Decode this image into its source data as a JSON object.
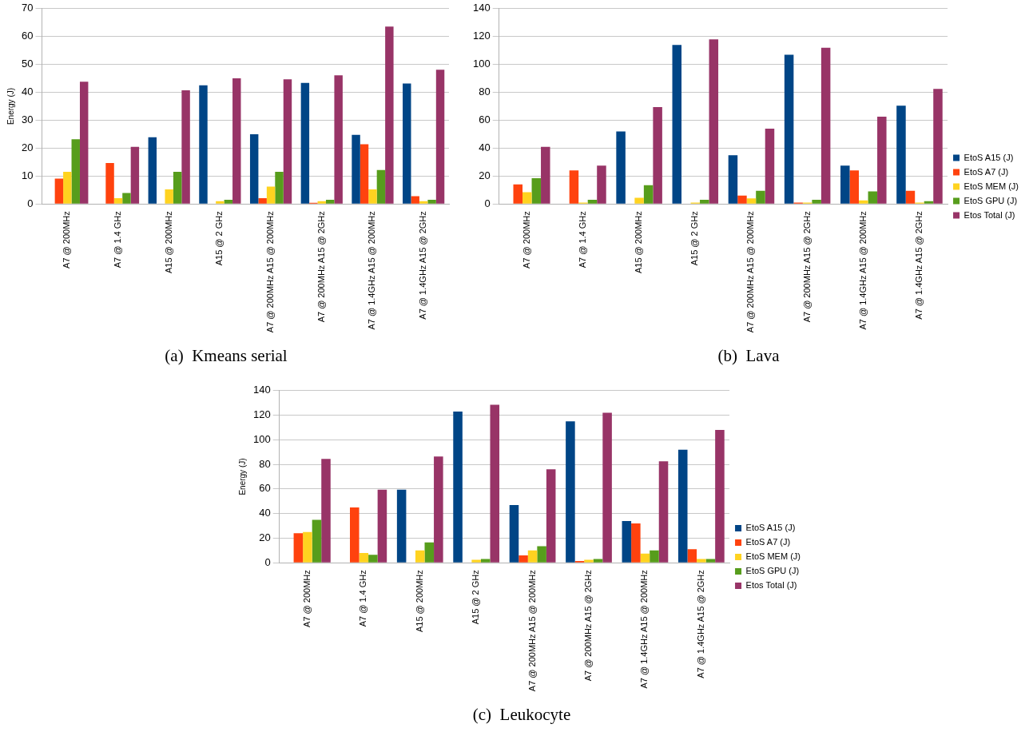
{
  "chart_data": [
    {
      "type": "bar",
      "title": "(a)  Kmeans serial",
      "ylabel": "Energy (J)",
      "categories": [
        "A7 @ 200MHz",
        "A7 @ 1.4 GHz",
        "A15 @ 200MHz",
        "A15 @ 2 GHz",
        "A7 @ 200MHz A15 @ 200MHz",
        "A7 @ 200MHz A15 @ 2GHz",
        "A7 @ 1.4GHz A15 @ 200MHz",
        "A7 @ 1.4GHz A15 @ 2GHz"
      ],
      "series": [
        {
          "color": "#004586",
          "values": [
            0,
            0,
            23.9,
            42.5,
            25,
            43.4,
            24.8,
            43.2
          ]
        },
        {
          "color": "#ff420e",
          "values": [
            9.1,
            14.7,
            0,
            0,
            2.1,
            0.4,
            21.4,
            2.8
          ]
        },
        {
          "color": "#ffd320",
          "values": [
            11.5,
            2.1,
            5.2,
            1,
            6.2,
            1,
            5.2,
            1
          ]
        },
        {
          "color": "#579d1c",
          "values": [
            23.2,
            3.9,
            11.5,
            1.5,
            11.5,
            1.5,
            12.2,
            1.5
          ]
        },
        {
          "color": "#983467",
          "values": [
            43.8,
            20.5,
            40.7,
            45,
            44.7,
            46.1,
            63.6,
            48.1
          ]
        }
      ],
      "ylim": [
        0,
        70
      ],
      "yticks": [
        0,
        10,
        20,
        30,
        40,
        50,
        60,
        70
      ],
      "grid": "y",
      "legend": false
    },
    {
      "type": "bar",
      "title": "(b)  Lava",
      "categories": [
        "A7 @ 200MHz",
        "A7 @ 1.4 GHz",
        "A15 @ 200MHz",
        "A15 @ 2 GHz",
        "A7 @ 200MHz A15 @ 200MHz",
        "A7 @ 200MHz A15 @ 2GHz",
        "A7 @ 1.4GHz A15 @ 200MHz",
        "A7 @ 1.4GHz A15 @ 2GHz"
      ],
      "series": [
        {
          "name": "EtoS A15 (J)",
          "color": "#004586",
          "values": [
            0,
            0,
            52,
            114,
            35,
            107,
            27.5,
            70.5
          ]
        },
        {
          "name": "EtoS A7 (J)",
          "color": "#ff420e",
          "values": [
            14,
            24,
            0,
            0,
            6,
            1,
            24,
            9.5
          ]
        },
        {
          "name": "EtoS MEM (J)",
          "color": "#ffd320",
          "values": [
            8.5,
            1,
            4.5,
            1,
            4,
            1,
            2.5,
            1
          ]
        },
        {
          "name": "EtoS GPU (J)",
          "color": "#579d1c",
          "values": [
            18.5,
            3,
            13.5,
            3,
            9.5,
            3,
            9,
            2
          ]
        },
        {
          "name": "Etos Total (J)",
          "color": "#983467",
          "values": [
            41,
            27.5,
            69.5,
            118,
            54,
            112,
            62.5,
            82.5
          ]
        }
      ],
      "ylim": [
        0,
        140
      ],
      "yticks": [
        0,
        20,
        40,
        60,
        80,
        100,
        120,
        140
      ],
      "grid": "y",
      "legend": "right"
    },
    {
      "type": "bar",
      "title": "(c)  Leukocyte",
      "ylabel": "Energy (J)",
      "categories": [
        "A7 @ 200MHz",
        "A7 @ 1.4 GHz",
        "A15 @ 200MHz",
        "A15 @ 2 GHz",
        "A7 @ 200MHz A15 @ 200MHz",
        "A7 @ 200MHz A15 @ 2GHz",
        "A7 @ 1.4GHz A15 @ 200MHz",
        "A7 @ 1.4GHz A15 @ 2GHz"
      ],
      "series": [
        {
          "name": "EtoS A15 (J)",
          "color": "#004586",
          "values": [
            0,
            0,
            59.5,
            123,
            47,
            115,
            34,
            92
          ]
        },
        {
          "name": "EtoS A7 (J)",
          "color": "#ff420e",
          "values": [
            24,
            45,
            0,
            0,
            6,
            1.5,
            32,
            11
          ]
        },
        {
          "name": "EtoS MEM (J)",
          "color": "#ffd320",
          "values": [
            25,
            8,
            10,
            2.5,
            10,
            2.5,
            7.5,
            3
          ]
        },
        {
          "name": "EtoS GPU (J)",
          "color": "#579d1c",
          "values": [
            35,
            6.5,
            16.5,
            3,
            13.5,
            3,
            10,
            3
          ]
        },
        {
          "name": "Etos Total (J)",
          "color": "#983467",
          "values": [
            84.5,
            59.5,
            86.5,
            128.5,
            76,
            122,
            82.5,
            108
          ]
        }
      ],
      "ylim": [
        0,
        140
      ],
      "yticks": [
        0,
        20,
        40,
        60,
        80,
        100,
        120,
        140
      ],
      "grid": "y",
      "legend": "right"
    }
  ]
}
